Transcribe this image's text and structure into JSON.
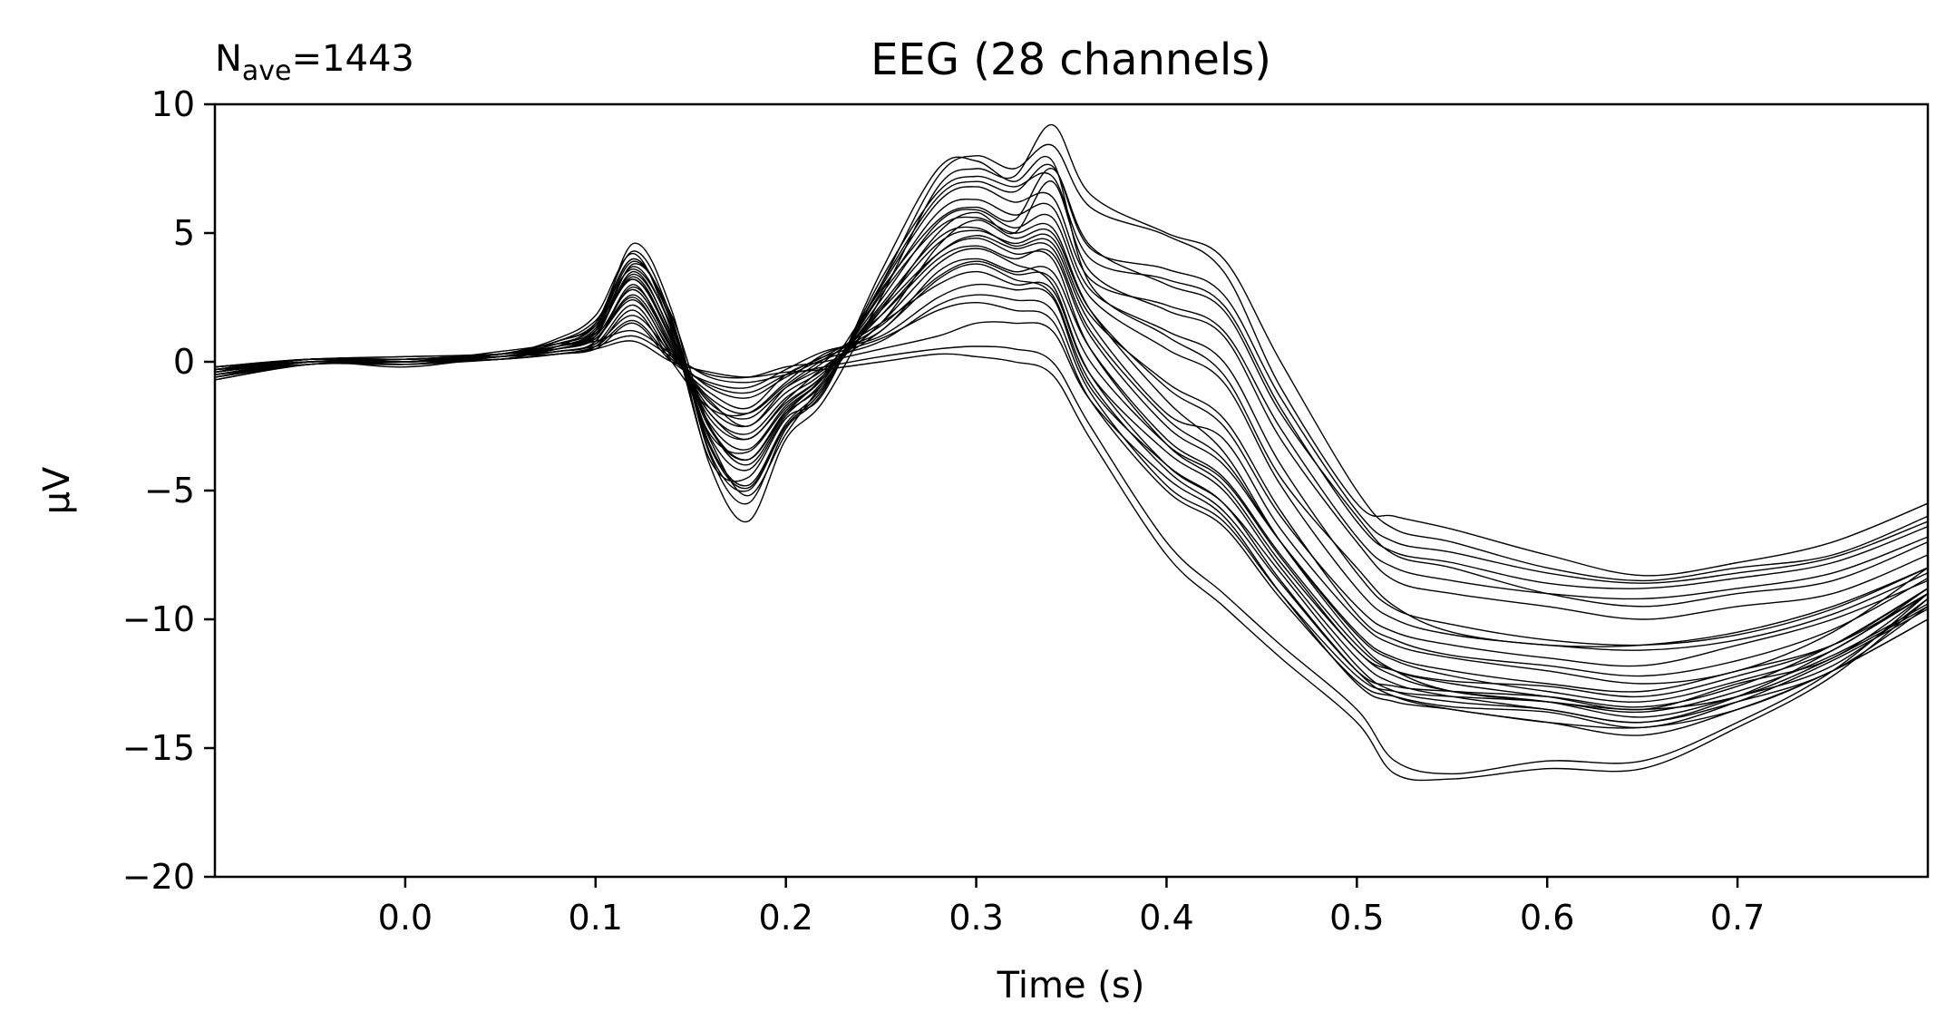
{
  "chart_data": {
    "type": "line",
    "title": "EEG (28 channels)",
    "annotation": {
      "symbol": "N",
      "subscript": "ave",
      "text": "=1443"
    },
    "xlabel": "Time (s)",
    "ylabel": "µV",
    "xlim": [
      -0.1,
      0.8
    ],
    "ylim": [
      -20,
      10
    ],
    "xticks": [
      0.0,
      0.1,
      0.2,
      0.3,
      0.4,
      0.5,
      0.6,
      0.7
    ],
    "xtick_labels": [
      "0.0",
      "0.1",
      "0.2",
      "0.3",
      "0.4",
      "0.5",
      "0.6",
      "0.7"
    ],
    "yticks": [
      10,
      5,
      0,
      -5,
      -10,
      -15,
      -20
    ],
    "ytick_labels": [
      "10",
      "5",
      "0",
      "−5",
      "−10",
      "−15",
      "−20"
    ],
    "grid": false,
    "line_color": "#000000",
    "x": [
      -0.1,
      -0.05,
      0.0,
      0.05,
      0.08,
      0.1,
      0.12,
      0.14,
      0.16,
      0.18,
      0.2,
      0.22,
      0.25,
      0.28,
      0.3,
      0.32,
      0.34,
      0.36,
      0.4,
      0.43,
      0.46,
      0.5,
      0.52,
      0.55,
      0.6,
      0.65,
      0.7,
      0.75,
      0.8
    ],
    "series": [
      {
        "values": [
          -0.3,
          0.0,
          0.1,
          0.2,
          0.6,
          1.2,
          4.6,
          2.0,
          -3.5,
          -5.0,
          -2.5,
          -1.0,
          3.0,
          7.2,
          8.0,
          7.5,
          8.4,
          6.0,
          4.9,
          3.5,
          -1.0,
          -5.5,
          -6.0,
          -6.5,
          -7.5,
          -8.3,
          -7.8,
          -7.0,
          -5.5
        ]
      },
      {
        "values": [
          -0.5,
          -0.1,
          0.0,
          0.3,
          0.8,
          1.5,
          4.0,
          1.5,
          -4.0,
          -6.2,
          -3.0,
          -1.5,
          2.5,
          6.8,
          7.5,
          7.2,
          9.2,
          6.5,
          5.0,
          4.0,
          0.0,
          -5.0,
          -6.5,
          -7.0,
          -8.0,
          -8.5,
          -8.0,
          -7.5,
          -6.0
        ]
      },
      {
        "values": [
          -0.2,
          0.1,
          0.0,
          0.4,
          0.7,
          1.0,
          3.8,
          1.8,
          -2.5,
          -4.0,
          -2.0,
          -0.5,
          2.8,
          5.5,
          6.0,
          5.5,
          7.5,
          4.5,
          3.0,
          2.0,
          -2.0,
          -6.0,
          -7.5,
          -8.0,
          -9.0,
          -9.5,
          -9.0,
          -8.5,
          -7.0
        ]
      },
      {
        "values": [
          -0.6,
          0.0,
          -0.1,
          0.2,
          0.5,
          1.0,
          3.5,
          1.0,
          -3.0,
          -5.2,
          -2.8,
          -0.8,
          2.0,
          5.0,
          5.8,
          5.0,
          7.0,
          3.5,
          2.0,
          1.0,
          -3.0,
          -7.0,
          -8.5,
          -9.0,
          -9.5,
          -10.0,
          -9.5,
          -9.0,
          -7.5
        ]
      },
      {
        "values": [
          -0.4,
          0.1,
          0.1,
          0.3,
          0.9,
          1.8,
          4.2,
          1.2,
          -3.8,
          -4.5,
          -2.2,
          -1.2,
          3.5,
          7.5,
          7.8,
          7.0,
          7.8,
          3.0,
          1.0,
          -0.5,
          -4.5,
          -8.0,
          -9.5,
          -10.5,
          -11.0,
          -11.0,
          -10.5,
          -9.5,
          -8.0
        ]
      },
      {
        "values": [
          -0.3,
          0.0,
          0.0,
          0.2,
          0.4,
          0.8,
          3.0,
          0.5,
          -2.0,
          -3.0,
          -1.5,
          -0.2,
          1.5,
          4.5,
          5.5,
          4.8,
          5.0,
          2.0,
          -1.0,
          -2.5,
          -6.0,
          -9.5,
          -10.5,
          -11.0,
          -11.5,
          -11.8,
          -11.0,
          -10.0,
          -8.5
        ]
      },
      {
        "values": [
          -0.7,
          -0.1,
          0.0,
          0.1,
          0.6,
          1.4,
          3.2,
          0.8,
          -2.8,
          -3.5,
          -1.8,
          -0.6,
          2.2,
          4.8,
          5.2,
          4.5,
          4.6,
          1.5,
          -2.0,
          -3.0,
          -6.5,
          -10.0,
          -11.0,
          -11.5,
          -12.0,
          -12.5,
          -12.0,
          -10.5,
          -8.0
        ]
      },
      {
        "values": [
          -0.2,
          0.1,
          0.2,
          0.3,
          0.5,
          0.9,
          2.5,
          0.3,
          -1.5,
          -2.5,
          -1.0,
          0.0,
          1.8,
          4.0,
          4.5,
          4.0,
          4.2,
          1.0,
          -2.5,
          -4.0,
          -7.0,
          -10.5,
          -11.5,
          -12.0,
          -12.5,
          -12.8,
          -12.0,
          -11.0,
          -9.0
        ]
      },
      {
        "values": [
          -0.5,
          0.0,
          -0.2,
          0.2,
          0.3,
          0.6,
          2.0,
          0.0,
          -1.8,
          -2.0,
          -0.8,
          0.3,
          1.2,
          3.5,
          4.0,
          3.5,
          3.5,
          0.5,
          -3.0,
          -4.5,
          -7.5,
          -11.0,
          -12.0,
          -12.5,
          -13.0,
          -13.5,
          -12.5,
          -11.5,
          -9.0
        ]
      },
      {
        "values": [
          -0.4,
          0.1,
          0.0,
          0.3,
          0.8,
          1.6,
          3.6,
          1.4,
          -2.5,
          -3.8,
          -2.0,
          -0.8,
          2.6,
          5.2,
          5.6,
          5.0,
          5.2,
          2.0,
          -1.5,
          -3.5,
          -7.0,
          -10.8,
          -12.0,
          -12.8,
          -13.2,
          -13.5,
          -13.0,
          -11.5,
          -9.5
        ]
      },
      {
        "values": [
          -0.3,
          -0.1,
          0.1,
          0.2,
          0.4,
          0.7,
          2.2,
          0.2,
          -1.2,
          -1.8,
          -0.5,
          0.2,
          1.5,
          3.0,
          3.5,
          3.0,
          2.8,
          -0.5,
          -3.5,
          -5.0,
          -8.0,
          -11.5,
          -12.5,
          -13.0,
          -13.5,
          -14.0,
          -13.2,
          -12.0,
          -9.5
        ]
      },
      {
        "values": [
          -0.6,
          0.0,
          0.0,
          0.1,
          0.3,
          0.5,
          1.5,
          0.0,
          -0.8,
          -1.0,
          -0.3,
          0.4,
          1.0,
          2.5,
          3.0,
          2.8,
          2.5,
          -1.0,
          -4.0,
          -5.5,
          -8.5,
          -12.0,
          -13.0,
          -13.5,
          -14.0,
          -14.5,
          -13.5,
          -12.0,
          -10.0
        ]
      },
      {
        "values": [
          -0.2,
          0.1,
          0.1,
          0.3,
          0.6,
          1.2,
          3.2,
          0.9,
          -2.2,
          -3.0,
          -1.6,
          -0.5,
          2.0,
          4.2,
          4.8,
          4.2,
          4.0,
          0.5,
          -3.2,
          -4.8,
          -7.8,
          -11.2,
          -12.2,
          -12.8,
          -13.2,
          -13.8,
          -13.0,
          -11.8,
          -9.2
        ]
      },
      {
        "values": [
          -0.5,
          0.0,
          0.1,
          0.2,
          0.4,
          0.6,
          1.0,
          0.2,
          -0.5,
          -0.6,
          -0.2,
          0.0,
          0.5,
          1.0,
          1.5,
          1.5,
          1.2,
          -1.5,
          -4.5,
          -6.0,
          -9.0,
          -12.5,
          -13.2,
          -13.5,
          -14.0,
          -14.2,
          -13.5,
          -12.0,
          -10.0
        ]
      },
      {
        "values": [
          -0.4,
          0.1,
          0.0,
          0.2,
          0.5,
          0.8,
          1.2,
          0.3,
          -0.6,
          -0.8,
          -0.5,
          -0.2,
          0.2,
          0.5,
          0.6,
          0.5,
          0.0,
          -2.5,
          -7.0,
          -9.0,
          -11.0,
          -13.5,
          -15.5,
          -16.0,
          -15.5,
          -15.5,
          -14.0,
          -12.0,
          -9.0
        ]
      },
      {
        "values": [
          -0.3,
          0.0,
          -0.1,
          0.1,
          0.3,
          0.5,
          0.8,
          0.0,
          -0.4,
          -0.6,
          -0.4,
          -0.3,
          0.0,
          0.3,
          0.2,
          0.0,
          -0.5,
          -3.0,
          -7.5,
          -9.5,
          -11.5,
          -14.0,
          -16.0,
          -16.2,
          -15.8,
          -15.8,
          -14.2,
          -12.2,
          -9.2
        ]
      },
      {
        "values": [
          -0.6,
          -0.1,
          0.0,
          0.3,
          0.6,
          1.0,
          2.8,
          0.6,
          -1.8,
          -2.5,
          -1.2,
          -0.3,
          1.5,
          3.8,
          4.4,
          3.8,
          3.0,
          -0.5,
          -4.0,
          -5.5,
          -8.2,
          -11.8,
          -12.8,
          -13.2,
          -13.5,
          -14.0,
          -13.0,
          -11.2,
          -9.0
        ]
      },
      {
        "values": [
          -0.3,
          0.1,
          0.1,
          0.2,
          0.5,
          0.9,
          2.6,
          0.5,
          -1.6,
          -2.2,
          -1.0,
          -0.2,
          1.2,
          3.2,
          3.8,
          3.2,
          2.6,
          -0.8,
          -4.2,
          -5.8,
          -8.6,
          -12.0,
          -12.6,
          -12.8,
          -13.0,
          -13.4,
          -12.6,
          -11.0,
          -8.8
        ]
      },
      {
        "values": [
          -0.5,
          0.0,
          0.0,
          0.2,
          0.4,
          0.7,
          1.8,
          0.3,
          -1.0,
          -1.4,
          -0.6,
          0.1,
          0.8,
          2.2,
          2.6,
          2.4,
          2.0,
          -1.2,
          -4.8,
          -6.2,
          -9.0,
          -12.2,
          -12.8,
          -13.0,
          -13.2,
          -13.6,
          -12.8,
          -11.4,
          -9.4
        ]
      },
      {
        "values": [
          -0.2,
          0.1,
          0.2,
          0.3,
          0.7,
          1.3,
          3.9,
          1.6,
          -3.2,
          -4.8,
          -2.4,
          -0.9,
          2.9,
          6.2,
          6.8,
          6.2,
          6.4,
          3.2,
          2.2,
          1.2,
          -2.6,
          -6.8,
          -8.0,
          -8.5,
          -9.0,
          -9.2,
          -8.8,
          -8.2,
          -6.8
        ]
      },
      {
        "values": [
          -0.4,
          0.0,
          0.1,
          0.3,
          0.8,
          1.5,
          4.3,
          1.7,
          -3.6,
          -5.5,
          -2.6,
          -1.1,
          3.2,
          6.6,
          7.2,
          6.8,
          7.2,
          4.0,
          3.2,
          2.2,
          -1.8,
          -6.2,
          -7.4,
          -7.8,
          -8.6,
          -8.8,
          -8.4,
          -7.8,
          -6.4
        ]
      },
      {
        "values": [
          -0.3,
          0.1,
          0.0,
          0.2,
          0.5,
          1.1,
          3.4,
          1.1,
          -2.6,
          -3.8,
          -1.9,
          -0.6,
          2.4,
          5.4,
          5.9,
          5.2,
          5.6,
          2.5,
          0.5,
          -0.8,
          -4.8,
          -8.8,
          -10.0,
          -10.6,
          -11.0,
          -11.2,
          -10.8,
          -9.8,
          -8.2
        ]
      },
      {
        "values": [
          -0.6,
          -0.1,
          0.0,
          0.2,
          0.6,
          1.2,
          3.7,
          1.3,
          -2.9,
          -4.2,
          -2.1,
          -0.7,
          2.7,
          5.8,
          6.3,
          5.7,
          6.0,
          2.8,
          1.2,
          0.0,
          -4.0,
          -8.2,
          -9.6,
          -10.2,
          -10.8,
          -11.0,
          -10.6,
          -9.6,
          -8.0
        ]
      },
      {
        "values": [
          -0.4,
          0.1,
          0.1,
          0.3,
          0.5,
          0.9,
          2.4,
          0.4,
          -1.4,
          -2.0,
          -0.9,
          0.1,
          1.4,
          3.3,
          3.9,
          3.4,
          3.2,
          0.0,
          -3.2,
          -4.6,
          -7.6,
          -11.2,
          -12.0,
          -12.4,
          -12.6,
          -13.0,
          -12.2,
          -11.0,
          -8.8
        ]
      },
      {
        "values": [
          -0.5,
          0.0,
          0.0,
          0.1,
          0.3,
          0.6,
          1.6,
          0.1,
          -0.9,
          -1.2,
          -0.5,
          0.2,
          0.9,
          2.0,
          2.3,
          2.0,
          1.6,
          -1.5,
          -5.0,
          -6.4,
          -9.2,
          -12.4,
          -13.0,
          -13.4,
          -13.6,
          -14.2,
          -13.2,
          -11.6,
          -9.6
        ]
      },
      {
        "values": [
          -0.3,
          0.1,
          0.1,
          0.2,
          0.4,
          0.8,
          2.9,
          0.7,
          -2.0,
          -2.8,
          -1.4,
          -0.4,
          1.8,
          4.2,
          4.9,
          4.4,
          4.4,
          1.2,
          -2.2,
          -3.8,
          -7.0,
          -10.6,
          -11.6,
          -12.2,
          -12.8,
          -13.2,
          -12.4,
          -11.2,
          -8.8
        ]
      },
      {
        "values": [
          -0.7,
          -0.1,
          -0.1,
          0.2,
          0.6,
          1.1,
          3.3,
          0.9,
          -2.4,
          -3.4,
          -1.7,
          -0.5,
          2.1,
          4.6,
          5.1,
          4.6,
          4.8,
          1.8,
          -0.8,
          -2.2,
          -5.8,
          -9.8,
          -10.8,
          -11.4,
          -11.8,
          -12.2,
          -11.6,
          -10.4,
          -8.4
        ]
      },
      {
        "values": [
          -0.2,
          0.0,
          0.1,
          0.3,
          0.7,
          1.4,
          4.0,
          1.5,
          -3.3,
          -4.9,
          -2.5,
          -1.0,
          3.0,
          6.4,
          7.0,
          6.6,
          7.6,
          4.4,
          3.6,
          2.6,
          -1.4,
          -5.8,
          -7.0,
          -7.4,
          -8.2,
          -8.6,
          -8.2,
          -7.6,
          -6.2
        ]
      }
    ]
  }
}
